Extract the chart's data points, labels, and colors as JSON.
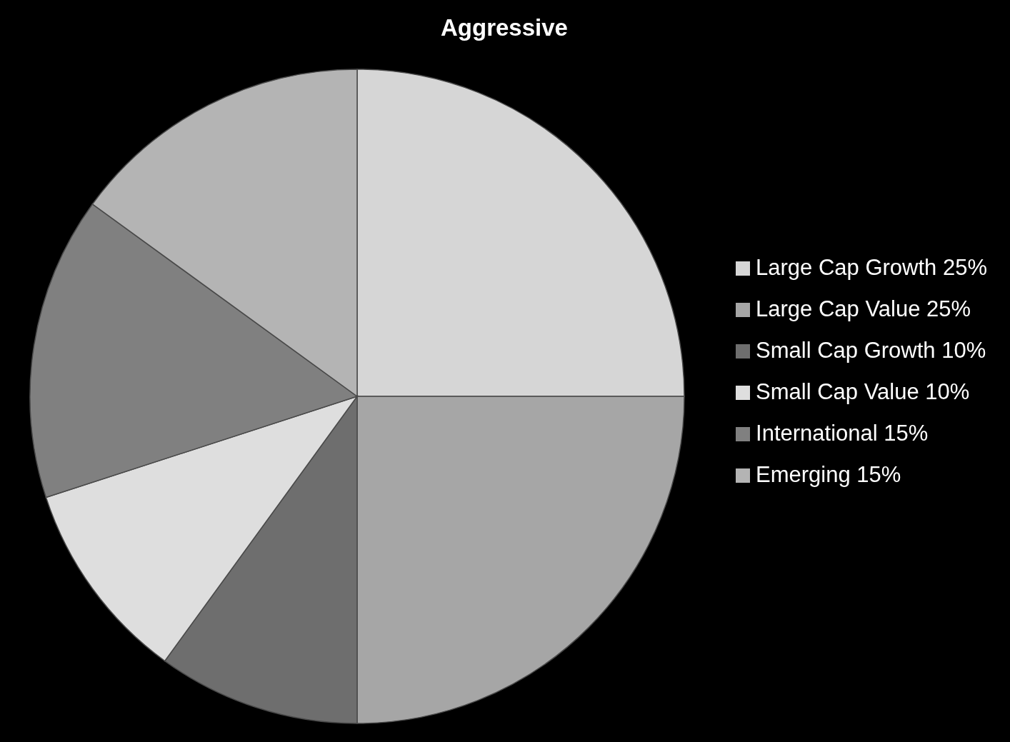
{
  "chart_data": {
    "type": "pie",
    "title": "Aggressive",
    "categories": [
      "Large Cap Growth 25%",
      "Large Cap Value 25%",
      "Small Cap Growth 10%",
      "Small Cap Value 10%",
      "International 15%",
      "Emerging 15%"
    ],
    "values": [
      25,
      25,
      10,
      10,
      15,
      15
    ],
    "colors": [
      "#d6d6d6",
      "#a6a6a6",
      "#6e6e6e",
      "#dedede",
      "#808080",
      "#b4b4b4"
    ],
    "legend": "right"
  }
}
